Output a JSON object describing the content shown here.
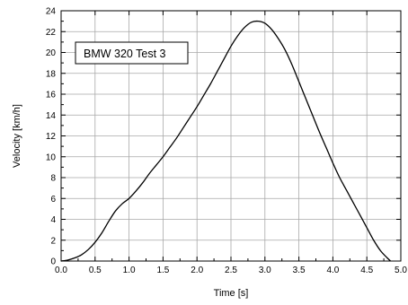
{
  "chart_data": {
    "type": "line",
    "title": "",
    "xlabel": "Time [s]",
    "ylabel": "Velocity [km/h]",
    "xlim": [
      0,
      5.0
    ],
    "ylim": [
      0,
      24
    ],
    "xticks": [
      0.0,
      0.5,
      1.0,
      1.5,
      2.0,
      2.5,
      3.0,
      3.5,
      4.0,
      4.5,
      5.0
    ],
    "xtick_labels": [
      "0.0",
      "0.5",
      "1.0",
      "1.5",
      "2.0",
      "2.5",
      "3.0",
      "3.5",
      "4.0",
      "4.5",
      "5.0"
    ],
    "yticks": [
      0,
      2,
      4,
      6,
      8,
      10,
      12,
      14,
      16,
      18,
      20,
      22,
      24
    ],
    "ytick_labels": [
      "0",
      "2",
      "4",
      "6",
      "8",
      "10",
      "12",
      "14",
      "16",
      "18",
      "20",
      "22",
      "24"
    ],
    "grid": true,
    "annotation": "BMW 320 Test  3",
    "series": [
      {
        "color": "#000000",
        "x": [
          0.0,
          0.1,
          0.2,
          0.3,
          0.4,
          0.5,
          0.6,
          0.7,
          0.8,
          0.9,
          1.0,
          1.1,
          1.2,
          1.3,
          1.4,
          1.5,
          1.6,
          1.7,
          1.8,
          1.9,
          2.0,
          2.1,
          2.2,
          2.3,
          2.4,
          2.5,
          2.6,
          2.7,
          2.8,
          2.9,
          3.0,
          3.1,
          3.2,
          3.3,
          3.4,
          3.5,
          3.6,
          3.7,
          3.8,
          3.9,
          4.0,
          4.1,
          4.2,
          4.3,
          4.4,
          4.5,
          4.6,
          4.7,
          4.8,
          4.85
        ],
        "y": [
          0.0,
          0.1,
          0.3,
          0.6,
          1.1,
          1.8,
          2.7,
          3.8,
          4.8,
          5.5,
          6.0,
          6.7,
          7.5,
          8.4,
          9.2,
          10.0,
          10.9,
          11.8,
          12.8,
          13.8,
          14.8,
          15.9,
          17.0,
          18.2,
          19.4,
          20.6,
          21.6,
          22.4,
          22.9,
          23.0,
          22.8,
          22.2,
          21.3,
          20.2,
          18.8,
          17.2,
          15.6,
          14.0,
          12.4,
          10.9,
          9.4,
          8.0,
          6.8,
          5.6,
          4.4,
          3.2,
          2.0,
          1.0,
          0.3,
          0.0
        ]
      }
    ]
  }
}
